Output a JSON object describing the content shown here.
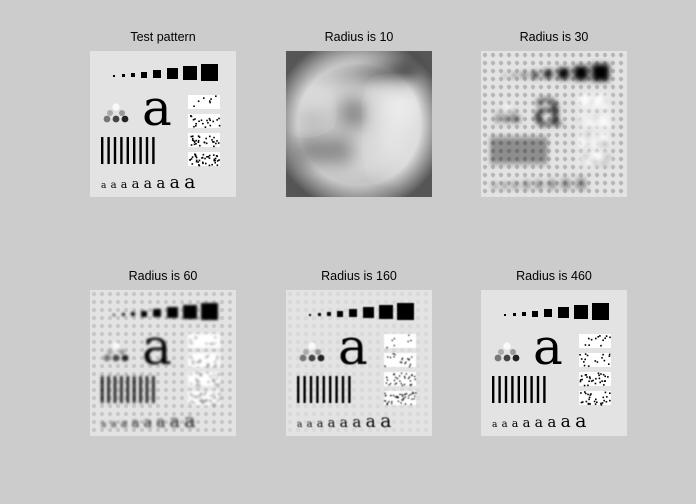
{
  "figure": {
    "background": "#cccccc",
    "panels": [
      {
        "id": "original",
        "title": "Test pattern",
        "blur": 0,
        "ringing": 0
      },
      {
        "id": "r10",
        "title": "Radius is 10",
        "blur": 9,
        "ringing": 0
      },
      {
        "id": "r30",
        "title": "Radius is 30",
        "blur": 2.6,
        "ringing": 0.25
      },
      {
        "id": "r60",
        "title": "Radius is 60",
        "blur": 1.3,
        "ringing": 0.15
      },
      {
        "id": "r160",
        "title": "Radius is 160",
        "blur": 0.5,
        "ringing": 0.05
      },
      {
        "id": "r460",
        "title": "Radius is 460",
        "blur": 0.15,
        "ringing": 0
      }
    ]
  }
}
